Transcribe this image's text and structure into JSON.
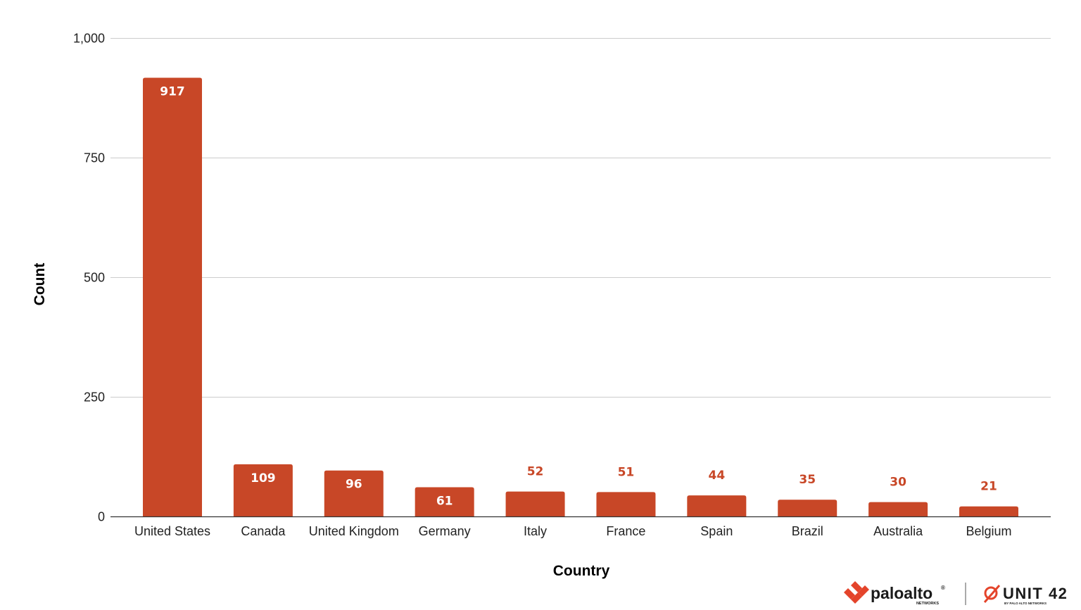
{
  "chart_data": {
    "type": "bar",
    "categories": [
      "United States",
      "Canada",
      "United Kingdom",
      "Germany",
      "Italy",
      "France",
      "Spain",
      "Brazil",
      "Australia",
      "Belgium"
    ],
    "values": [
      917,
      109,
      96,
      61,
      52,
      51,
      44,
      35,
      30,
      21
    ],
    "data_labels": [
      "917",
      "109",
      "96",
      "61",
      "52",
      "51",
      "44",
      "35",
      "30",
      "21"
    ],
    "xlabel": "Country",
    "ylabel": "Count",
    "ylim": [
      0,
      1000
    ],
    "yticks": [
      0,
      250,
      500,
      750,
      1000
    ],
    "ytick_labels": [
      "0",
      "250",
      "500",
      "750",
      "1,000"
    ],
    "grid": true,
    "legend": "none"
  },
  "colors": {
    "bar": "#c84727",
    "label_inside": "#ffffff",
    "label_outside": "#c84727",
    "gridline": "#cccccc",
    "axis": "#333333"
  },
  "logos": {
    "paloalto": {
      "name": "paloalto",
      "registered": "®",
      "sub": "NETWORKS",
      "icon": "paloalto-chevrons-icon"
    },
    "unit42": {
      "name": "UNIT 42",
      "sub": "BY PALO ALTO NETWORKS",
      "icon": "unit42-emblem-icon"
    }
  }
}
